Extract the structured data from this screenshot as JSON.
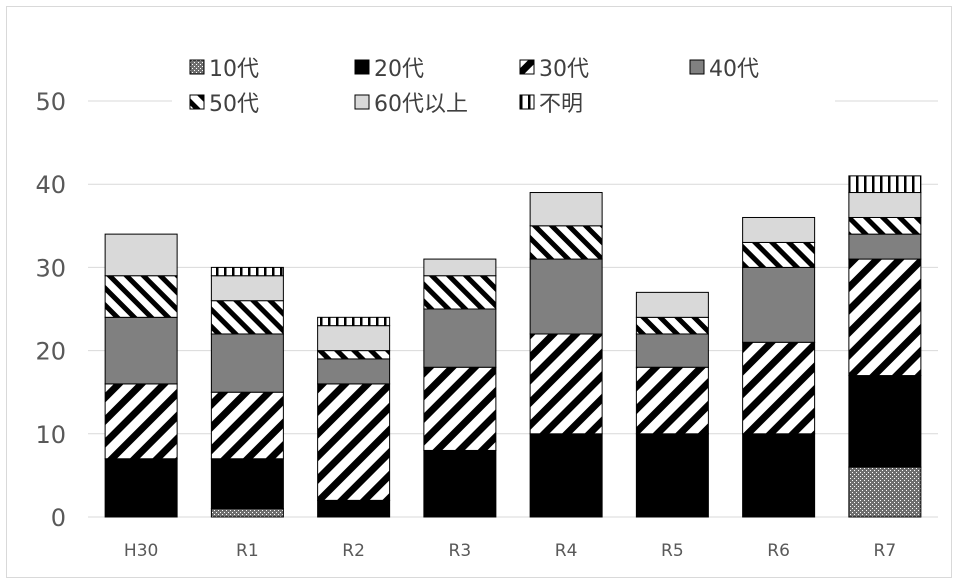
{
  "chart_data": {
    "type": "bar",
    "stacked": true,
    "categories": [
      "H30",
      "R1",
      "R2",
      "R3",
      "R4",
      "R5",
      "R6",
      "R7"
    ],
    "series": [
      {
        "name": "10代",
        "pattern": "dots",
        "values": [
          0,
          1,
          0,
          0,
          0,
          0,
          0,
          6
        ]
      },
      {
        "name": "20代",
        "pattern": "solid-black",
        "values": [
          7,
          6,
          2,
          8,
          10,
          10,
          10,
          11
        ]
      },
      {
        "name": "30代",
        "pattern": "wide-diag",
        "values": [
          9,
          8,
          14,
          10,
          12,
          8,
          11,
          14
        ]
      },
      {
        "name": "40代",
        "pattern": "solid-gray",
        "values": [
          8,
          7,
          3,
          7,
          9,
          4,
          9,
          3
        ]
      },
      {
        "name": "50代",
        "pattern": "thin-diag",
        "values": [
          5,
          4,
          1,
          4,
          4,
          2,
          3,
          2
        ]
      },
      {
        "name": "60代以上",
        "pattern": "light-gray",
        "values": [
          5,
          3,
          3,
          2,
          4,
          3,
          3,
          3
        ]
      },
      {
        "name": "不明",
        "pattern": "vertical",
        "values": [
          0,
          1,
          1,
          0,
          0,
          0,
          0,
          2
        ]
      }
    ],
    "ylim": [
      0,
      50
    ],
    "yticks": [
      0,
      10,
      20,
      30,
      40,
      50
    ],
    "grid": true,
    "legend_position": "top",
    "colors": {
      "grid": "#d9d9d9",
      "solid_black": "#000000",
      "solid_gray": "#808080",
      "light_gray": "#d9d9d9",
      "outline": "#000000"
    }
  }
}
